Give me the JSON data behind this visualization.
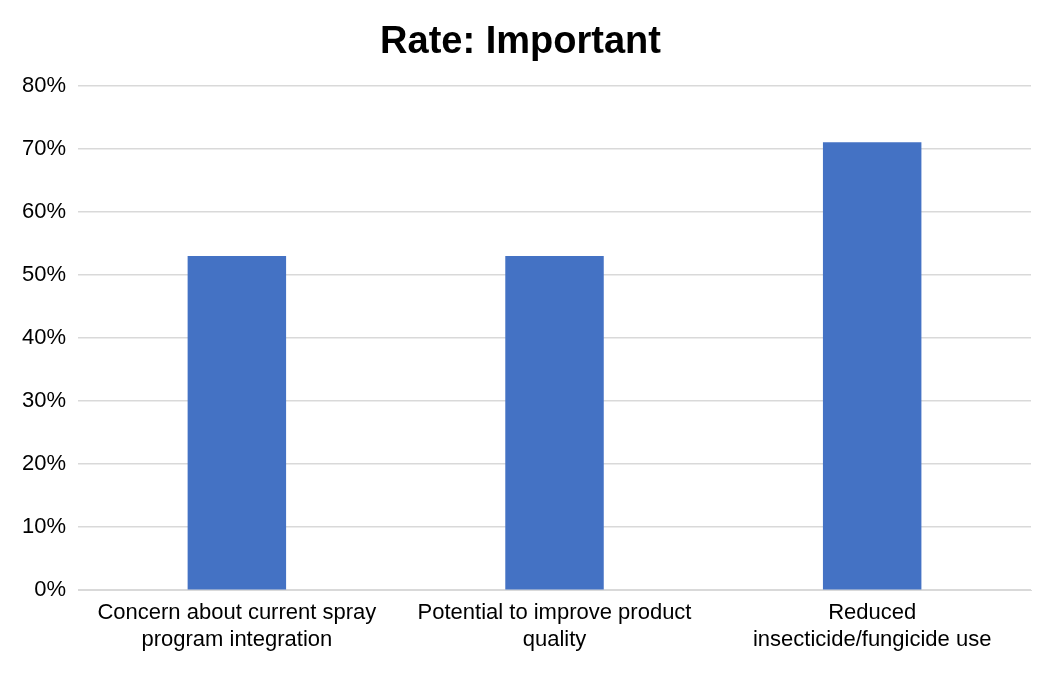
{
  "chart_data": {
    "type": "bar",
    "title": "Rate: Important",
    "categories": [
      "Concern about current spray program integration",
      "Potential to improve product quality",
      "Reduced insecticide/fungicide use"
    ],
    "values": [
      53,
      53,
      71
    ],
    "color": "#4472c4",
    "ylim": [
      0,
      80
    ],
    "yticks": [
      {
        "value": 0,
        "label": "0%"
      },
      {
        "value": 10,
        "label": "10%"
      },
      {
        "value": 20,
        "label": "20%"
      },
      {
        "value": 30,
        "label": "30%"
      },
      {
        "value": 40,
        "label": "40%"
      },
      {
        "value": 50,
        "label": "50%"
      },
      {
        "value": 60,
        "label": "60%"
      },
      {
        "value": 70,
        "label": "70%"
      },
      {
        "value": 80,
        "label": "80%"
      }
    ],
    "grid": "y",
    "legend": false
  }
}
